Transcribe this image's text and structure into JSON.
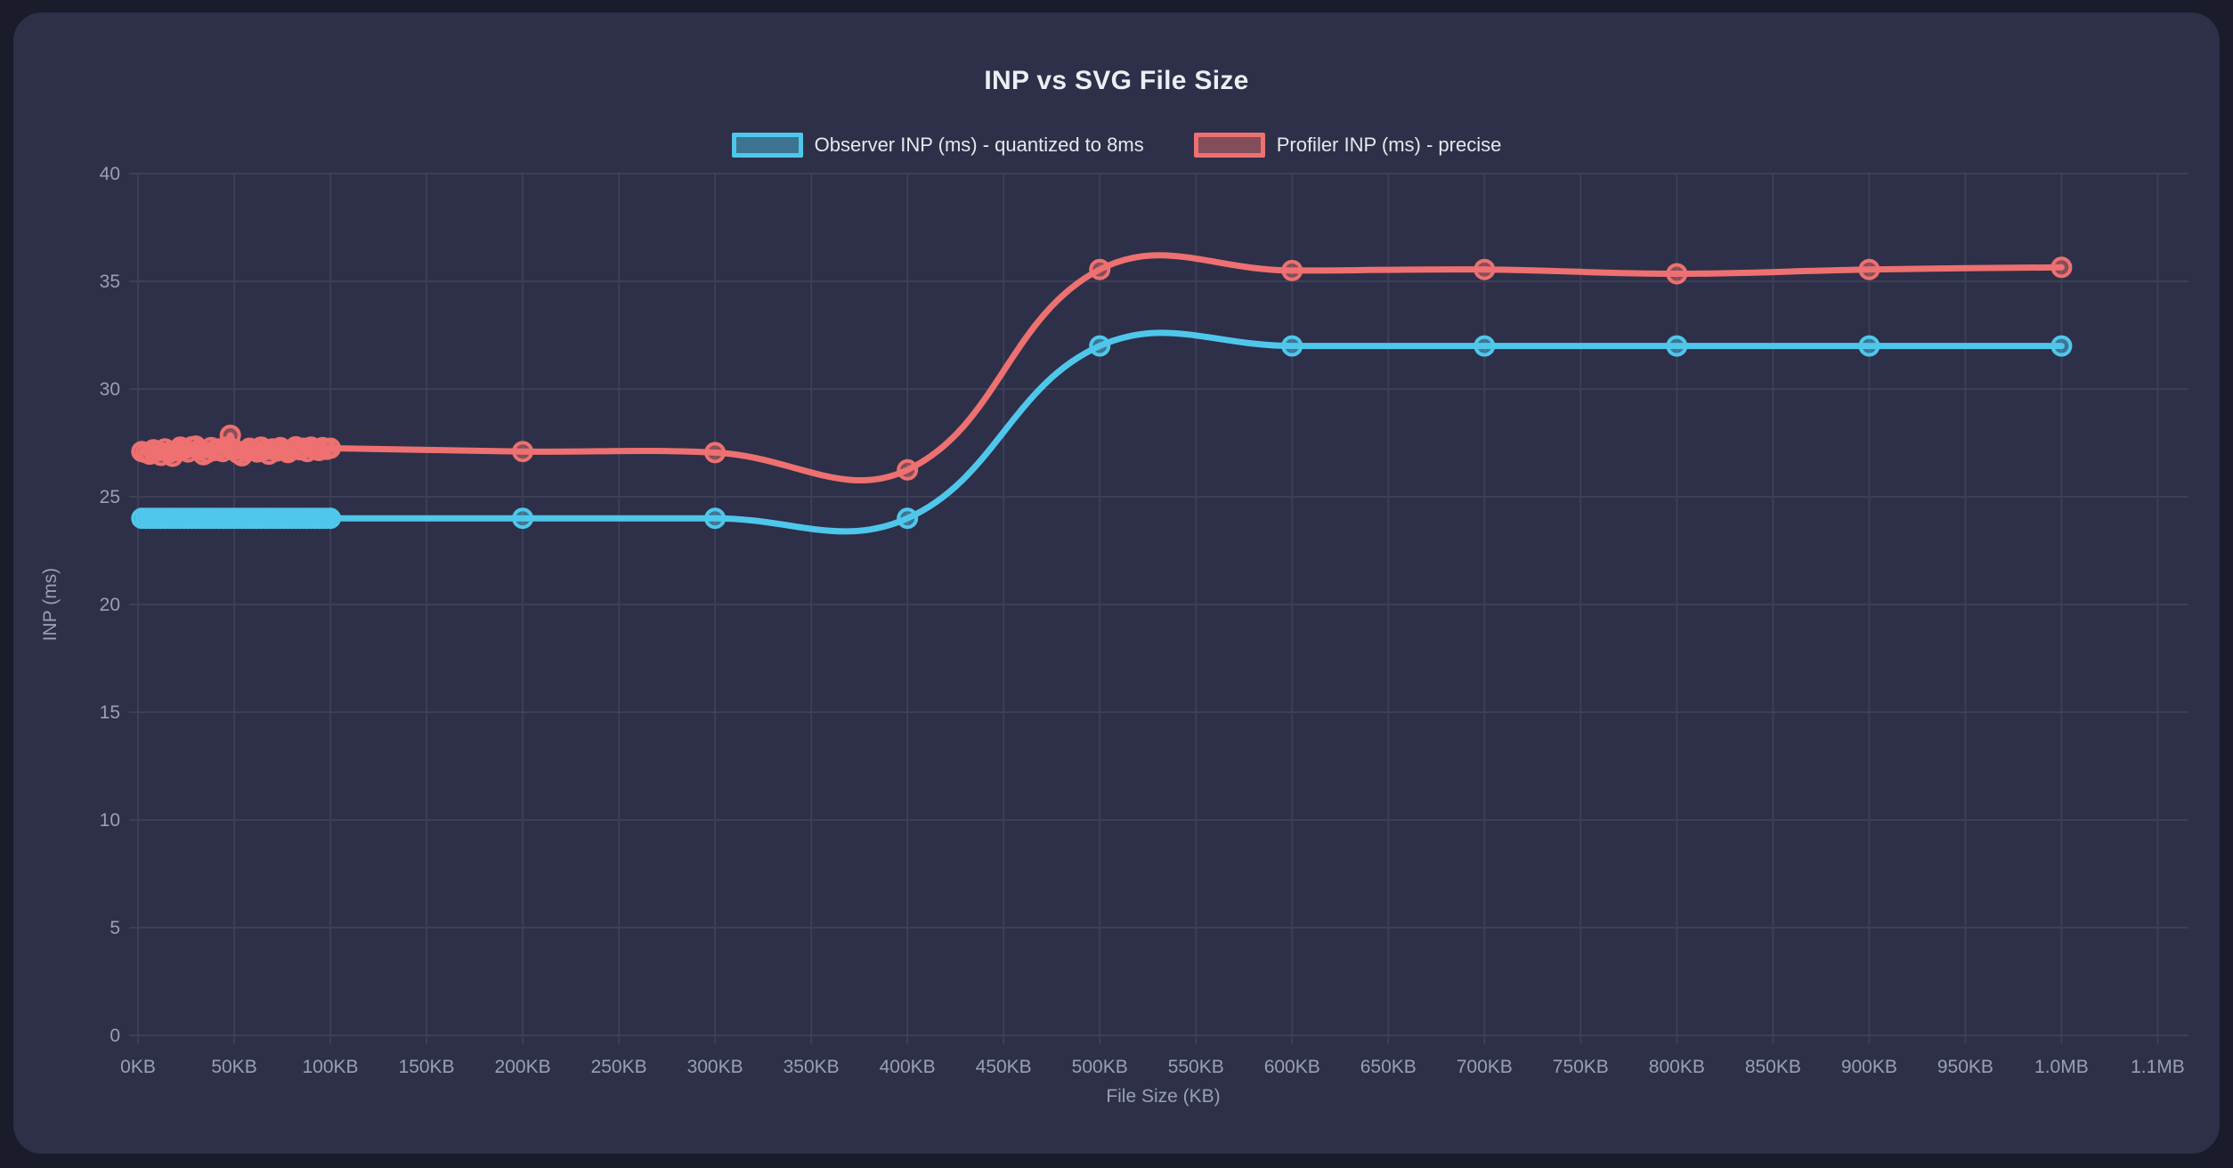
{
  "colors": {
    "page_bg": "#1a1b2b",
    "card_bg": "#2d3048",
    "grid": "#3c3f56",
    "tick_text": "#9aa0b2",
    "title_text": "#eceef4",
    "legend_text": "#e6e8ee",
    "observer_blue": "#4fc7eb",
    "profiler_red": "#ee7070"
  },
  "chart_data": {
    "type": "line",
    "title": "INP vs SVG File Size",
    "xlabel": "File Size (KB)",
    "ylabel": "INP (ms)",
    "xlim": [
      0,
      1066
    ],
    "ylim": [
      0,
      40
    ],
    "grid": true,
    "legend_position": "top",
    "x_ticks": {
      "values": [
        0,
        50,
        100,
        150,
        200,
        250,
        300,
        350,
        400,
        450,
        500,
        550,
        600,
        650,
        700,
        750,
        800,
        850,
        900,
        950,
        1000,
        1050
      ],
      "labels": [
        "0KB",
        "50KB",
        "100KB",
        "150KB",
        "200KB",
        "250KB",
        "300KB",
        "350KB",
        "400KB",
        "450KB",
        "500KB",
        "550KB",
        "600KB",
        "650KB",
        "700KB",
        "750KB",
        "800KB",
        "850KB",
        "900KB",
        "950KB",
        "1.0MB",
        "1.1MB"
      ]
    },
    "y_ticks": {
      "values": [
        0,
        5,
        10,
        15,
        20,
        25,
        30,
        35,
        40
      ],
      "labels": [
        "0",
        "5",
        "10",
        "15",
        "20",
        "25",
        "30",
        "35",
        "40"
      ]
    },
    "series": [
      {
        "name": "Observer INP (ms) - quantized to 8ms",
        "color": "#4fc7eb",
        "fill_alpha": 0.45,
        "points": [
          [
            2,
            24
          ],
          [
            4,
            24
          ],
          [
            6,
            24
          ],
          [
            8,
            24
          ],
          [
            10,
            24
          ],
          [
            12,
            24
          ],
          [
            14,
            24
          ],
          [
            16,
            24
          ],
          [
            18,
            24
          ],
          [
            20,
            24
          ],
          [
            22,
            24
          ],
          [
            24,
            24
          ],
          [
            26,
            24
          ],
          [
            28,
            24
          ],
          [
            30,
            24
          ],
          [
            32,
            24
          ],
          [
            34,
            24
          ],
          [
            36,
            24
          ],
          [
            38,
            24
          ],
          [
            40,
            24
          ],
          [
            42,
            24
          ],
          [
            44,
            24
          ],
          [
            46,
            24
          ],
          [
            48,
            24
          ],
          [
            50,
            24
          ],
          [
            52,
            24
          ],
          [
            54,
            24
          ],
          [
            56,
            24
          ],
          [
            58,
            24
          ],
          [
            60,
            24
          ],
          [
            62,
            24
          ],
          [
            64,
            24
          ],
          [
            66,
            24
          ],
          [
            68,
            24
          ],
          [
            70,
            24
          ],
          [
            72,
            24
          ],
          [
            74,
            24
          ],
          [
            76,
            24
          ],
          [
            78,
            24
          ],
          [
            80,
            24
          ],
          [
            82,
            24
          ],
          [
            84,
            24
          ],
          [
            86,
            24
          ],
          [
            88,
            24
          ],
          [
            90,
            24
          ],
          [
            92,
            24
          ],
          [
            94,
            24
          ],
          [
            96,
            24
          ],
          [
            98,
            24
          ],
          [
            100,
            24
          ],
          [
            200,
            24
          ],
          [
            300,
            24
          ],
          [
            400,
            24
          ],
          [
            500,
            32
          ],
          [
            600,
            32
          ],
          [
            700,
            32
          ],
          [
            800,
            32
          ],
          [
            900,
            32
          ],
          [
            1000,
            32
          ]
        ]
      },
      {
        "name": "Profiler INP (ms) - precise",
        "color": "#ee7070",
        "fill_alpha": 0.45,
        "points": [
          [
            2,
            27.1
          ],
          [
            4,
            27.05
          ],
          [
            6,
            26.98
          ],
          [
            8,
            27.18
          ],
          [
            10,
            27.12
          ],
          [
            12,
            26.92
          ],
          [
            14,
            27.22
          ],
          [
            16,
            27.05
          ],
          [
            18,
            26.88
          ],
          [
            20,
            27.15
          ],
          [
            22,
            27.3
          ],
          [
            24,
            27.22
          ],
          [
            26,
            27.08
          ],
          [
            28,
            27.32
          ],
          [
            30,
            27.35
          ],
          [
            32,
            27.18
          ],
          [
            34,
            26.95
          ],
          [
            36,
            27.05
          ],
          [
            38,
            27.28
          ],
          [
            40,
            27.15
          ],
          [
            42,
            27.22
          ],
          [
            44,
            27.1
          ],
          [
            46,
            27.3
          ],
          [
            48,
            27.85
          ],
          [
            50,
            27.2
          ],
          [
            52,
            27.02
          ],
          [
            54,
            26.9
          ],
          [
            56,
            27.12
          ],
          [
            58,
            27.25
          ],
          [
            60,
            27.18
          ],
          [
            62,
            27.08
          ],
          [
            64,
            27.3
          ],
          [
            66,
            27.18
          ],
          [
            68,
            26.98
          ],
          [
            70,
            27.22
          ],
          [
            72,
            27.12
          ],
          [
            74,
            27.28
          ],
          [
            76,
            27.15
          ],
          [
            78,
            27.05
          ],
          [
            80,
            27.2
          ],
          [
            82,
            27.32
          ],
          [
            84,
            27.18
          ],
          [
            86,
            27.25
          ],
          [
            88,
            27.1
          ],
          [
            90,
            27.3
          ],
          [
            92,
            27.22
          ],
          [
            94,
            27.15
          ],
          [
            96,
            27.28
          ],
          [
            98,
            27.2
          ],
          [
            100,
            27.25
          ],
          [
            200,
            27.1
          ],
          [
            300,
            27.05
          ],
          [
            400,
            26.25
          ],
          [
            500,
            35.55
          ],
          [
            600,
            35.5
          ],
          [
            700,
            35.55
          ],
          [
            800,
            35.35
          ],
          [
            900,
            35.55
          ],
          [
            1000,
            35.65
          ]
        ]
      }
    ]
  }
}
